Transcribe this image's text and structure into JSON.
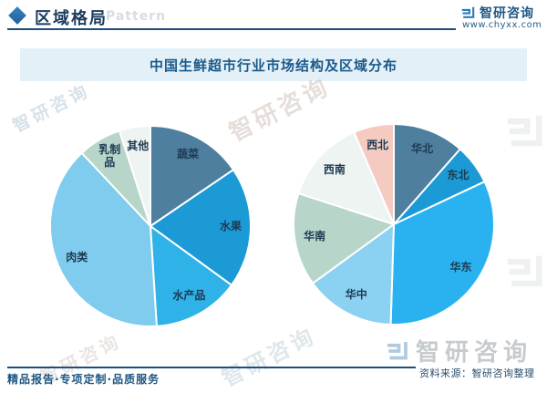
{
  "header": {
    "section_title": "区域格局",
    "watermark_text": "Pattern",
    "brand_name": "智研咨询",
    "brand_url": "www.chyxx.com"
  },
  "chart_title": "中国生鲜超市行业市场结构及区域分布",
  "chart_data": [
    {
      "type": "pie",
      "name": "市场结构",
      "unit": "%",
      "start_angle": 0,
      "label_color": "#1e3a52",
      "slices": [
        {
          "label": "蔬菜",
          "value": 15.5,
          "color": "#4e7f9e"
        },
        {
          "label": "水果",
          "value": 19.5,
          "color": "#1b9ad6"
        },
        {
          "label": "水产品",
          "value": 14.0,
          "color": "#2eb2e8"
        },
        {
          "label": "肉类",
          "value": 39.0,
          "color": "#7fccee"
        },
        {
          "label": "乳制品",
          "value": 7.0,
          "color": "#b7d6c9",
          "lines": [
            "乳制",
            "品"
          ]
        },
        {
          "label": "其他",
          "value": 5.0,
          "color": "#eef4f1"
        }
      ]
    },
    {
      "type": "pie",
      "name": "区域分布",
      "unit": "%",
      "start_angle": 0,
      "label_color": "#1e3a52",
      "slices": [
        {
          "label": "华北",
          "value": 11.5,
          "color": "#4e7f9e"
        },
        {
          "label": "东北",
          "value": 6.5,
          "color": "#1b9ad6"
        },
        {
          "label": "华东",
          "value": 32.5,
          "color": "#29b2ef"
        },
        {
          "label": "华中",
          "value": 14.5,
          "color": "#8bd1f1"
        },
        {
          "label": "华南",
          "value": 15.0,
          "color": "#b7d6c9"
        },
        {
          "label": "西南",
          "value": 13.5,
          "color": "#eef4f1"
        },
        {
          "label": "西北",
          "value": 6.5,
          "color": "#f4cac1"
        }
      ]
    }
  ],
  "footer": {
    "tagline": "精品报告·专项定制·品质服务",
    "source": "资料来源：智研咨询整理"
  },
  "watermark": {
    "brand_text": "智研咨询"
  }
}
